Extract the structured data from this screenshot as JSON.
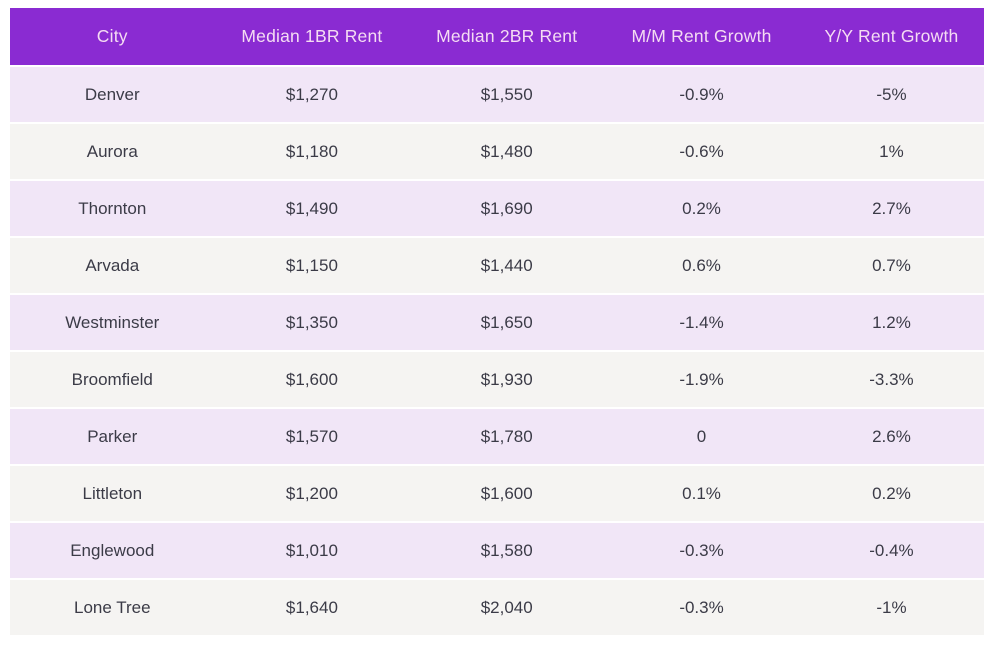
{
  "chart_data": {
    "type": "table",
    "columns": [
      "City",
      "Median 1BR Rent",
      "Median 2BR Rent",
      "M/M Rent Growth",
      "Y/Y Rent Growth"
    ],
    "rows": [
      [
        "Denver",
        "$1,270",
        "$1,550",
        "-0.9%",
        "-5%"
      ],
      [
        "Aurora",
        "$1,180",
        "$1,480",
        "-0.6%",
        "1%"
      ],
      [
        "Thornton",
        "$1,490",
        "$1,690",
        "0.2%",
        "2.7%"
      ],
      [
        "Arvada",
        "$1,150",
        "$1,440",
        "0.6%",
        "0.7%"
      ],
      [
        "Westminster",
        "$1,350",
        "$1,650",
        "-1.4%",
        "1.2%"
      ],
      [
        "Broomfield",
        "$1,600",
        "$1,930",
        "-1.9%",
        "-3.3%"
      ],
      [
        "Parker",
        "$1,570",
        "$1,780",
        "0",
        "2.6%"
      ],
      [
        "Littleton",
        "$1,200",
        "$1,600",
        "0.1%",
        "0.2%"
      ],
      [
        "Englewood",
        "$1,010",
        "$1,580",
        "-0.3%",
        "-0.4%"
      ],
      [
        "Lone Tree",
        "$1,640",
        "$2,040",
        "-0.3%",
        "-1%"
      ]
    ],
    "layout": {
      "header_position": "top",
      "grid": false,
      "row_striping": "alternating"
    }
  },
  "colors": {
    "header_bg": "#8a2bd2",
    "header_text": "#f5dcf3",
    "row_odd_bg": "#f1e6f7",
    "row_even_bg": "#f5f4f2",
    "cell_text": "#3b3b47",
    "page_bg": "#ffffff"
  }
}
